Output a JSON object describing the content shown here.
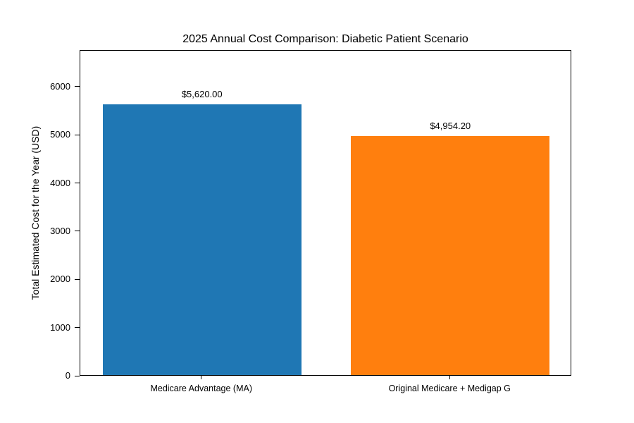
{
  "figure": {
    "title": "2025 Annual Cost Comparison: Diabetic Patient Scenario"
  },
  "chart_data": {
    "type": "bar",
    "title": "2025 Annual Cost Comparison: Diabetic Patient Scenario",
    "categories": [
      "Medicare Advantage (MA)",
      "Original Medicare + Medigap G"
    ],
    "values": [
      5620.0,
      4954.2
    ],
    "bar_value_labels": [
      "$5,620.00",
      "$4,954.20"
    ],
    "bar_colors": [
      "#1f77b4",
      "#ff7f0e"
    ],
    "xlabel": "",
    "ylabel": "Total Estimated Cost for the Year (USD)",
    "ylim": [
      0,
      6760
    ],
    "yticks": [
      0,
      1000,
      2000,
      3000,
      4000,
      5000,
      6000
    ],
    "grid": false,
    "legend_position": "none",
    "background_color": "#ffffff",
    "axis_color": "#000000"
  }
}
